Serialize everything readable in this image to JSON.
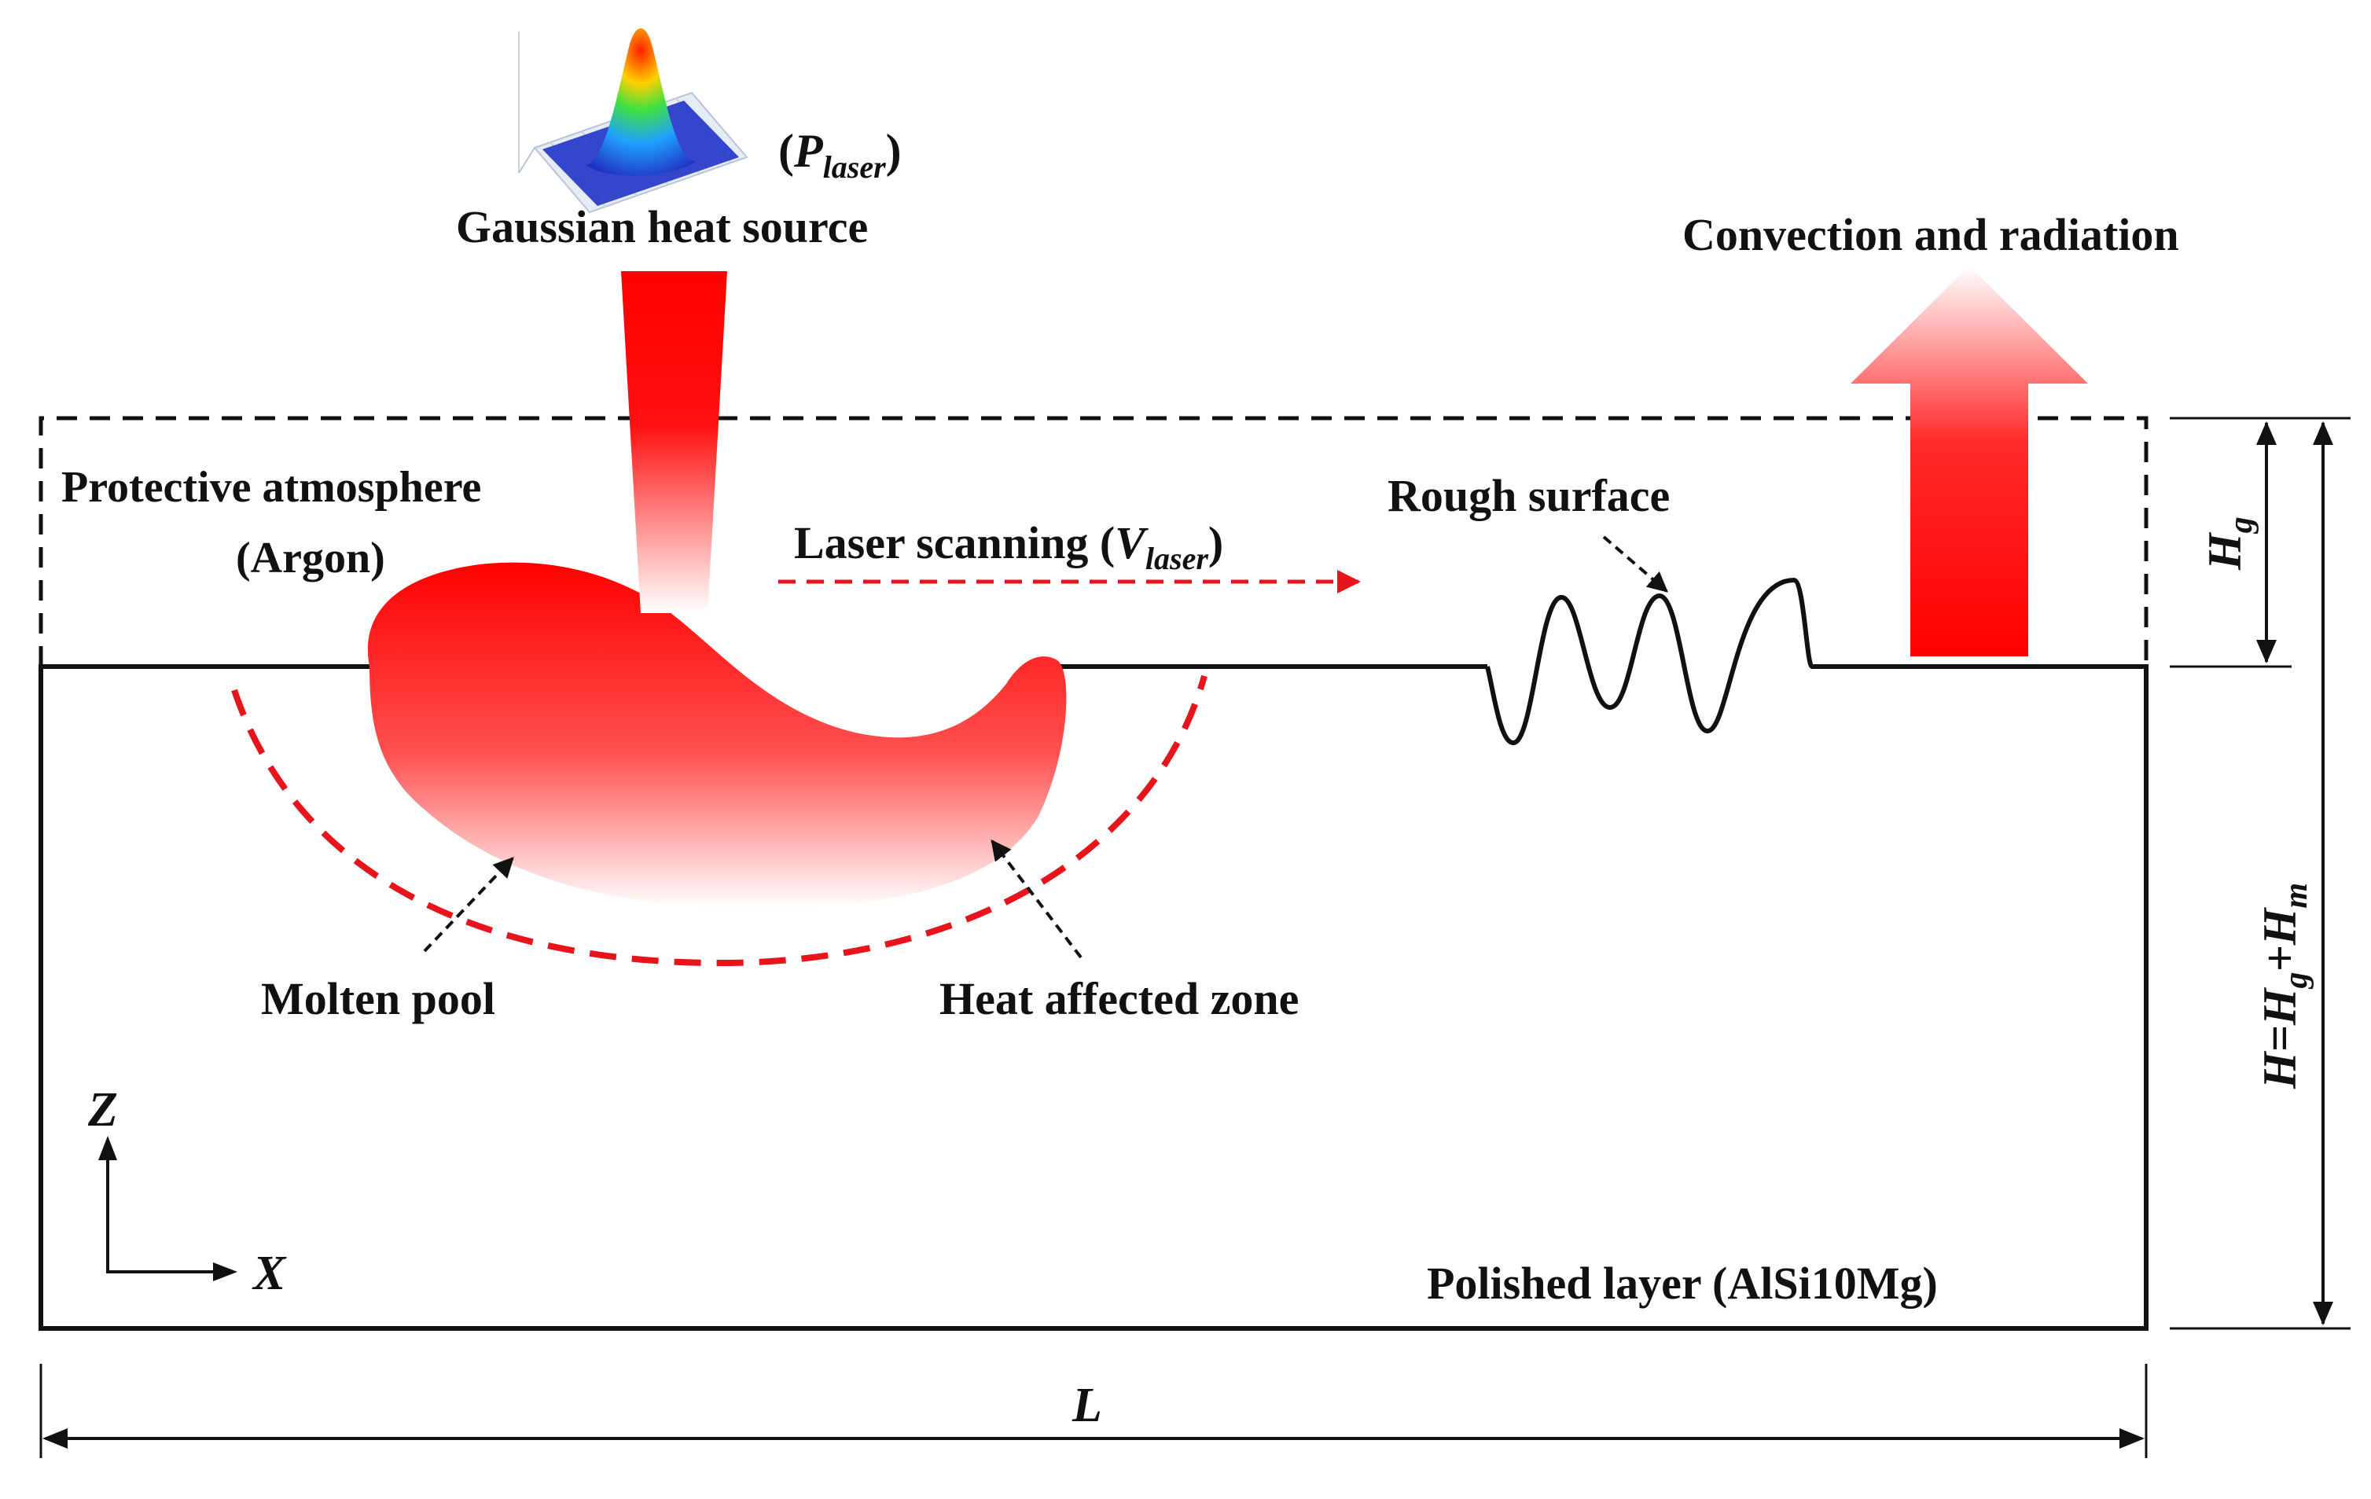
{
  "labels": {
    "p_laser_open": "(",
    "p_laser_main": "P",
    "p_laser_sub": "laser",
    "p_laser_close": ")",
    "gaussian": "Gaussian heat source",
    "convection": "Convection and radiation",
    "protective_line1": "Protective atmosphere",
    "protective_line2": "(Argon)",
    "scanning_prefix": "Laser scanning (",
    "scanning_main": "V",
    "scanning_sub": "laser",
    "scanning_close": ")",
    "rough": "Rough surface",
    "molten": "Molten pool",
    "haz": "Heat affected zone",
    "polished": "Polished layer (AlSi10Mg)",
    "axis_z": "Z",
    "axis_x": "X",
    "dim_L": "L",
    "dim_Hg_main": "H",
    "dim_Hg_sub": "g",
    "dim_H_main": "H=H",
    "dim_H_sub1": "g",
    "dim_H_plus": "+H",
    "dim_H_sub2": "m"
  },
  "colors": {
    "laser_red": "#ff0000",
    "dash_red": "#e8141c",
    "line": "#111111"
  },
  "icons": {
    "gaussian_plot": "gaussian-peak-3d-icon"
  }
}
